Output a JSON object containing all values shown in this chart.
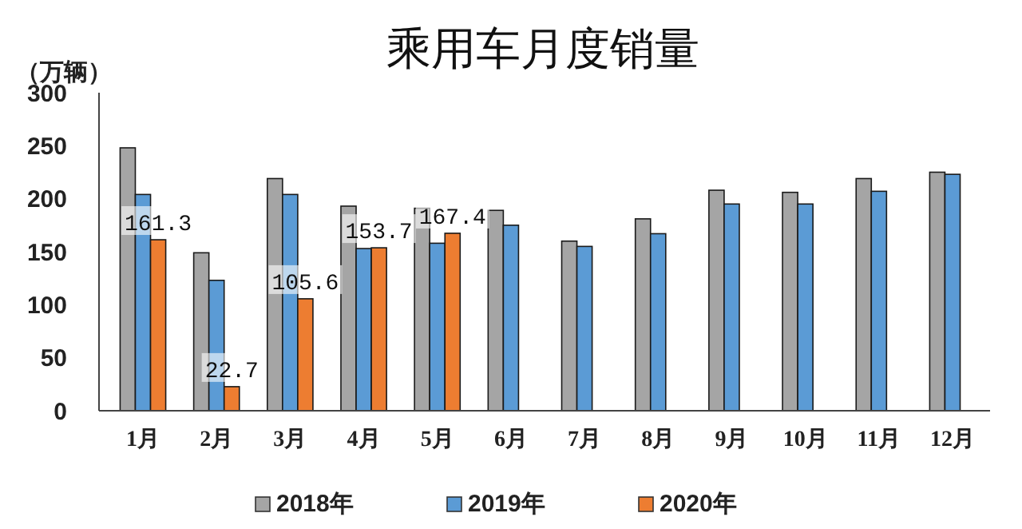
{
  "chart_data": {
    "type": "bar",
    "title": "乘用车月度销量",
    "ylabel": "（万辆）",
    "categories": [
      "1月",
      "2月",
      "3月",
      "4月",
      "5月",
      "6月",
      "7月",
      "8月",
      "9月",
      "10月",
      "11月",
      "12月"
    ],
    "series": [
      {
        "name": "2018年",
        "color": "#a5a5a5",
        "values": [
          248,
          149,
          219,
          193,
          191,
          189,
          160,
          181,
          208,
          206,
          219,
          225
        ]
      },
      {
        "name": "2019年",
        "color": "#5b9bd5",
        "values": [
          204,
          123,
          204,
          153,
          158,
          175,
          155,
          167,
          195,
          195,
          207,
          223
        ]
      },
      {
        "name": "2020年",
        "color": "#ed7d31",
        "values": [
          161.3,
          22.7,
          105.6,
          153.7,
          167.4,
          null,
          null,
          null,
          null,
          null,
          null,
          null
        ],
        "value_labels": [
          "161.3",
          "22.7",
          "105.6",
          "153.7",
          "167.4",
          null,
          null,
          null,
          null,
          null,
          null,
          null
        ]
      }
    ],
    "ylim": [
      0,
      300
    ],
    "yticks": [
      0,
      50,
      100,
      150,
      200,
      250,
      300
    ],
    "grid": false,
    "legend": "bottom"
  }
}
